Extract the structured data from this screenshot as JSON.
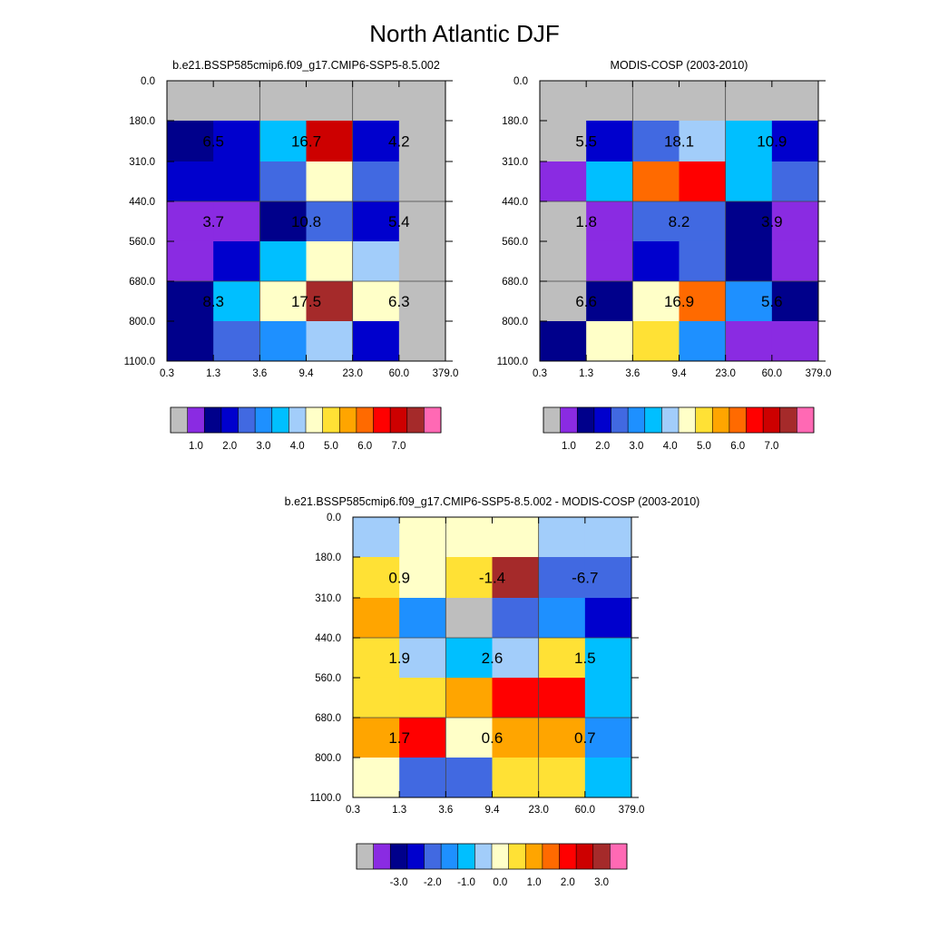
{
  "figure": {
    "title": "North Atlantic DJF"
  },
  "chart_data": [
    {
      "type": "heatmap",
      "title": "b.e21.BSSP585cmip6.f09_g17.CMIP6-SSP5-8.5.002",
      "x_ticks": [
        "0.3",
        "1.3",
        "3.6",
        "9.4",
        "23.0",
        "60.0",
        "379.0"
      ],
      "y_ticks": [
        "0.0",
        "180.0",
        "310.0",
        "440.0",
        "560.0",
        "680.0",
        "800.0",
        "1100.0"
      ],
      "palette": [
        "#bebebe",
        "#8a2be2",
        "#00008b",
        "#0000cd",
        "#4169e1",
        "#1e90ff",
        "#00bfff",
        "#a2cdfa",
        "#ffffc8",
        "#ffe135",
        "#ffa500",
        "#ff6a00",
        "#ff0000",
        "#cd0000",
        "#a52a2a",
        "#ff69b4"
      ],
      "colorbar_labels": [
        "1.0",
        "2.0",
        "3.0",
        "4.0",
        "5.0",
        "6.0",
        "7.0"
      ],
      "colorbar_label_offset": 1.5,
      "cells": [
        [
          0,
          0,
          0,
          0,
          0,
          0
        ],
        [
          2,
          3,
          6,
          13,
          3,
          0
        ],
        [
          3,
          3,
          4,
          8,
          4,
          0
        ],
        [
          1,
          1,
          2,
          4,
          3,
          0
        ],
        [
          1,
          3,
          6,
          8,
          7,
          0
        ],
        [
          2,
          6,
          8,
          14,
          8,
          0
        ],
        [
          2,
          4,
          5,
          7,
          3,
          0
        ]
      ],
      "labels": [
        {
          "text": "6.5",
          "col": 1,
          "row": 1.5
        },
        {
          "text": "16.7",
          "col": 3,
          "row": 1.5
        },
        {
          "text": "4.2",
          "col": 5,
          "row": 1.5
        },
        {
          "text": "3.7",
          "col": 1,
          "row": 3.5
        },
        {
          "text": "10.8",
          "col": 3,
          "row": 3.5
        },
        {
          "text": "5.4",
          "col": 5,
          "row": 3.5
        },
        {
          "text": "8.3",
          "col": 1,
          "row": 5.5
        },
        {
          "text": "17.5",
          "col": 3,
          "row": 5.5
        },
        {
          "text": "6.3",
          "col": 5,
          "row": 5.5
        }
      ]
    },
    {
      "type": "heatmap",
      "title": "MODIS-COSP (2003-2010)",
      "x_ticks": [
        "0.3",
        "1.3",
        "3.6",
        "9.4",
        "23.0",
        "60.0",
        "379.0"
      ],
      "y_ticks": [
        "0.0",
        "180.0",
        "310.0",
        "440.0",
        "560.0",
        "680.0",
        "800.0",
        "1100.0"
      ],
      "palette": [
        "#bebebe",
        "#8a2be2",
        "#00008b",
        "#0000cd",
        "#4169e1",
        "#1e90ff",
        "#00bfff",
        "#a2cdfa",
        "#ffffc8",
        "#ffe135",
        "#ffa500",
        "#ff6a00",
        "#ff0000",
        "#cd0000",
        "#a52a2a",
        "#ff69b4"
      ],
      "colorbar_labels": [
        "1.0",
        "2.0",
        "3.0",
        "4.0",
        "5.0",
        "6.0",
        "7.0"
      ],
      "colorbar_label_offset": 1.5,
      "cells": [
        [
          0,
          0,
          0,
          0,
          0,
          0
        ],
        [
          0,
          3,
          4,
          7,
          6,
          3
        ],
        [
          1,
          6,
          11,
          12,
          6,
          4
        ],
        [
          0,
          1,
          4,
          4,
          2,
          1
        ],
        [
          0,
          1,
          3,
          4,
          2,
          1
        ],
        [
          0,
          2,
          8,
          11,
          5,
          2
        ],
        [
          2,
          8,
          9,
          5,
          1,
          1
        ]
      ],
      "labels": [
        {
          "text": "5.5",
          "col": 1,
          "row": 1.5
        },
        {
          "text": "18.1",
          "col": 3,
          "row": 1.5
        },
        {
          "text": "10.9",
          "col": 5,
          "row": 1.5
        },
        {
          "text": "1.8",
          "col": 1,
          "row": 3.5
        },
        {
          "text": "8.2",
          "col": 3,
          "row": 3.5
        },
        {
          "text": "3.9",
          "col": 5,
          "row": 3.5
        },
        {
          "text": "6.6",
          "col": 1,
          "row": 5.5
        },
        {
          "text": "16.9",
          "col": 3,
          "row": 5.5
        },
        {
          "text": "5.6",
          "col": 5,
          "row": 5.5
        }
      ]
    },
    {
      "type": "heatmap",
      "title": "b.e21.BSSP585cmip6.f09_g17.CMIP6-SSP5-8.5.002 - MODIS-COSP (2003-2010)",
      "x_ticks": [
        "0.3",
        "1.3",
        "3.6",
        "9.4",
        "23.0",
        "60.0",
        "379.0"
      ],
      "y_ticks": [
        "0.0",
        "180.0",
        "310.0",
        "440.0",
        "560.0",
        "680.0",
        "800.0",
        "1100.0"
      ],
      "palette": [
        "#bebebe",
        "#8a2be2",
        "#00008b",
        "#0000cd",
        "#4169e1",
        "#1e90ff",
        "#00bfff",
        "#a2cdfa",
        "#ffffc8",
        "#ffe135",
        "#ffa500",
        "#ff6a00",
        "#ff0000",
        "#cd0000",
        "#a52a2a",
        "#ff69b4"
      ],
      "colorbar_labels": [
        "-3.0",
        "-2.0",
        "-1.0",
        "0.0",
        "1.0",
        "2.0",
        "3.0"
      ],
      "colorbar_label_offset": 2.5,
      "cells": [
        [
          7,
          8,
          8,
          8,
          7,
          7
        ],
        [
          9,
          8,
          9,
          14,
          4,
          4
        ],
        [
          10,
          5,
          0,
          4,
          5,
          3
        ],
        [
          9,
          7,
          6,
          7,
          9,
          6
        ],
        [
          9,
          9,
          10,
          12,
          12,
          6
        ],
        [
          10,
          12,
          8,
          10,
          10,
          5
        ],
        [
          8,
          4,
          4,
          9,
          9,
          6
        ]
      ],
      "labels": [
        {
          "text": "0.9",
          "col": 1,
          "row": 1.5
        },
        {
          "text": "-1.4",
          "col": 3,
          "row": 1.5
        },
        {
          "text": "-6.7",
          "col": 5,
          "row": 1.5
        },
        {
          "text": "1.9",
          "col": 1,
          "row": 3.5
        },
        {
          "text": "2.6",
          "col": 3,
          "row": 3.5
        },
        {
          "text": "1.5",
          "col": 5,
          "row": 3.5
        },
        {
          "text": "1.7",
          "col": 1,
          "row": 5.5
        },
        {
          "text": "0.6",
          "col": 3,
          "row": 5.5
        },
        {
          "text": "0.7",
          "col": 5,
          "row": 5.5
        }
      ]
    }
  ]
}
